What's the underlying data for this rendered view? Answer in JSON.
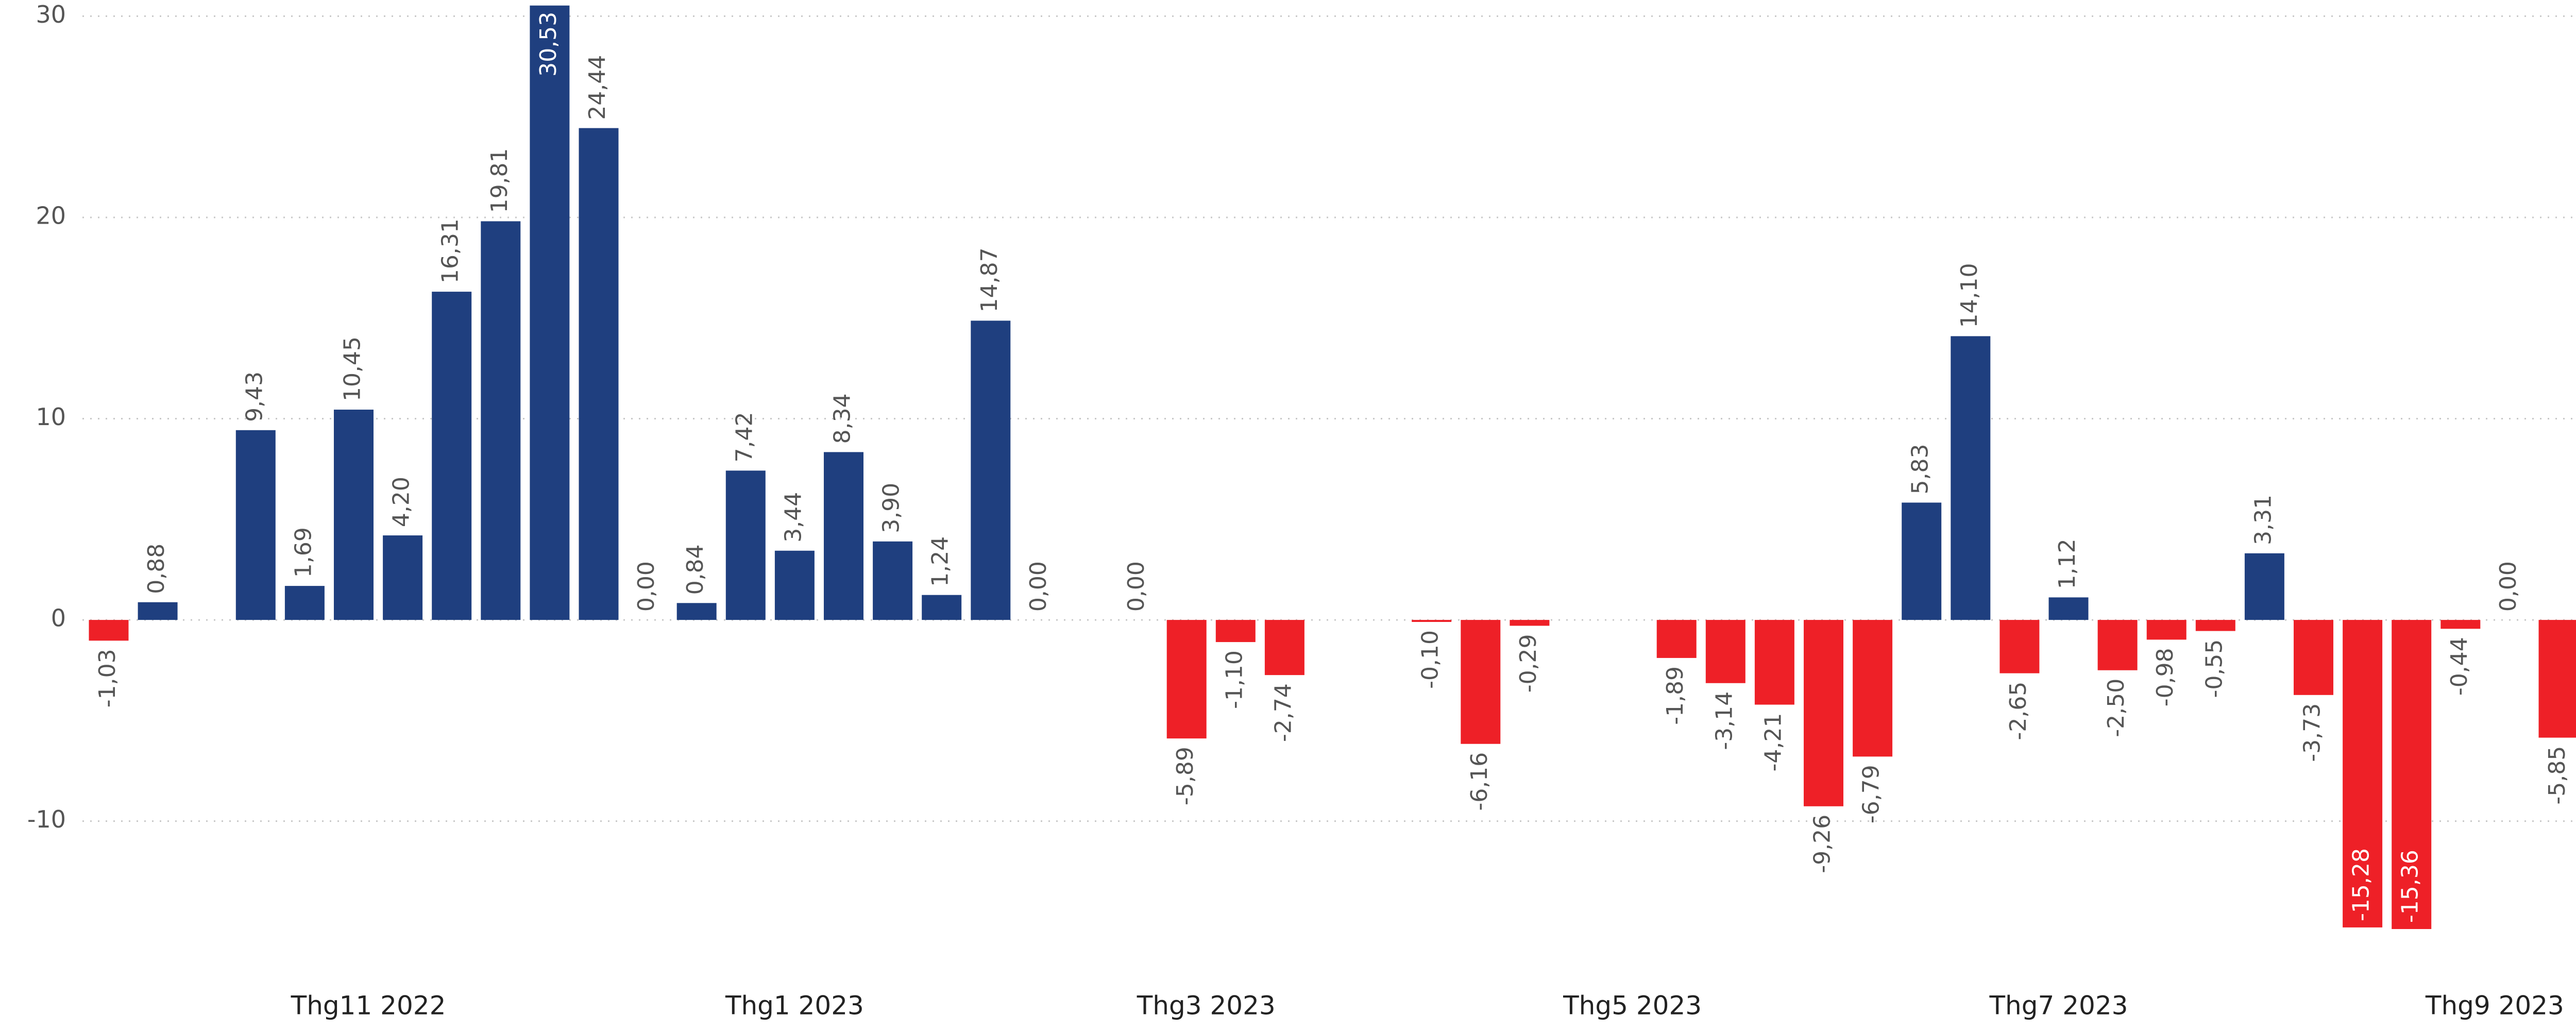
{
  "chart_data": {
    "type": "bar",
    "categories": [
      null,
      null,
      null,
      null,
      null,
      null,
      null,
      null,
      null,
      null,
      null,
      null,
      null,
      null,
      null,
      null,
      null,
      null,
      null,
      null,
      null,
      null,
      null,
      null,
      null,
      null,
      null,
      null,
      null,
      null,
      null,
      null,
      null,
      null,
      null,
      null,
      null,
      null,
      null,
      null,
      null,
      null,
      null,
      null,
      null,
      null,
      null,
      null,
      null,
      null,
      null
    ],
    "values": [
      -1.03,
      0.88,
      null,
      9.43,
      1.69,
      10.45,
      4.2,
      16.31,
      19.81,
      30.53,
      24.44,
      0,
      0.84,
      7.42,
      3.44,
      8.34,
      3.9,
      1.24,
      14.87,
      0,
      null,
      0,
      -5.89,
      -1.1,
      -2.74,
      null,
      null,
      -0.1,
      -6.16,
      -0.29,
      null,
      null,
      -1.89,
      -3.14,
      -4.21,
      -9.26,
      -6.79,
      5.83,
      14.1,
      -2.65,
      1.12,
      -2.5,
      -0.98,
      -0.55,
      3.31,
      -3.73,
      -15.28,
      -15.36,
      -0.44,
      0,
      -5.85
    ],
    "value_labels": [
      "-1,03",
      "0,88",
      null,
      "9,43",
      "1,69",
      "10,45",
      "4,20",
      "16,31",
      "19,81",
      "30,53",
      "24,44",
      "0,00",
      "0,84",
      "7,42",
      "3,44",
      "8,34",
      "3,90",
      "1,24",
      "14,87",
      "0,00",
      null,
      "0,00",
      "-5,89",
      "-1,10",
      "-2,74",
      null,
      null,
      "-0,10",
      "-6,16",
      "-0,29",
      null,
      null,
      "-1,89",
      "-3,14",
      "-4,21",
      "-9,26",
      "-6,79",
      "5,83",
      "14,10",
      "-2,65",
      "1,12",
      "-2,50",
      "-0,98",
      "-0,55",
      "3,31",
      "-3,73",
      "-15,28",
      "-15,36",
      "-0,44",
      "0,00",
      "-5,85"
    ],
    "positive_color": "#1f3f7f",
    "negative_color": "#ee2027",
    "xticks": [
      {
        "value": 5.3,
        "label": "Thg11 2022"
      },
      {
        "value": 14,
        "label": "Thg1 2023"
      },
      {
        "value": 22.4,
        "label": "Thg3 2023"
      },
      {
        "value": 31.1,
        "label": "Thg5 2023"
      },
      {
        "value": 39.8,
        "label": "Thg7 2023"
      },
      {
        "value": 48.7,
        "label": "Thg9 2023"
      }
    ],
    "ylim": [
      -16,
      30.6
    ],
    "yticks": [
      -10,
      0,
      10,
      20,
      30
    ],
    "grid": true
  }
}
